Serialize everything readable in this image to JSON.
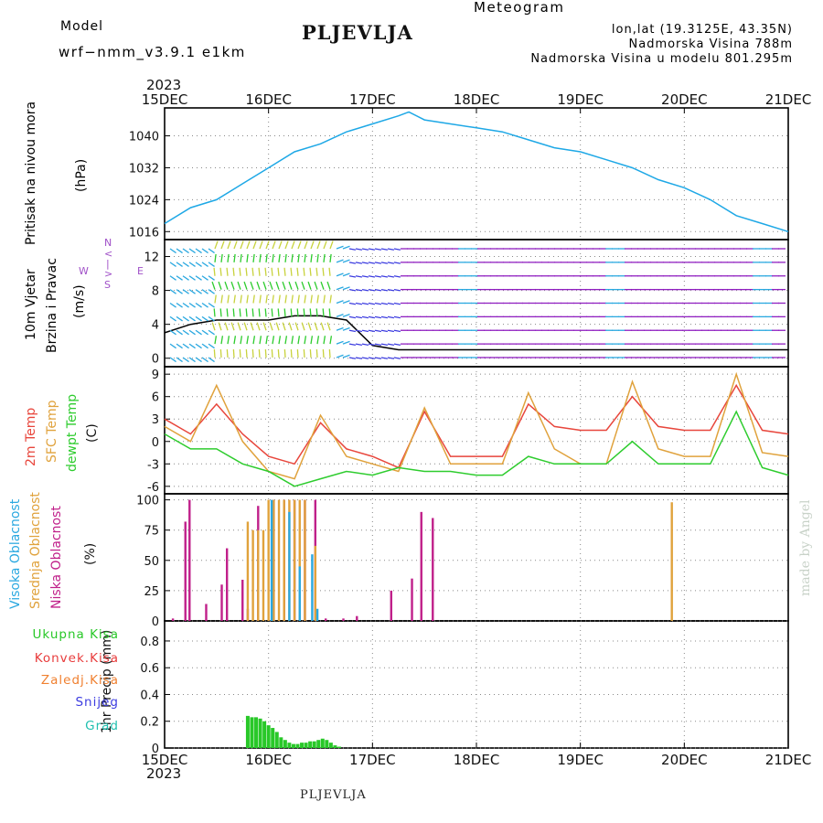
{
  "header": {
    "model_label": "Model",
    "model_value": "wrf−nmm_v3.9.1  e1km",
    "title": "PLJEVLJA",
    "meteogram_label": "Meteogram",
    "lonlat": "lon,lat (19.3125E, 43.35N)",
    "altitude": "Nadmorska Visina 788m",
    "model_altitude": "Nadmorska Visina u modelu 801.295m",
    "year_top": "2023",
    "year_bottom": "2023",
    "footer": "PLJEVLJA",
    "credit": "made by Angel"
  },
  "colors": {
    "pressure": "#1ea8e6",
    "temp2m": "#e8463c",
    "sfc": "#e0a23c",
    "dewpt": "#2ecc2e",
    "high_cloud": "#2aa8e0",
    "mid_cloud": "#e0a23c",
    "low_cloud": "#c0208a",
    "label_purple": "#a050c8",
    "label_orange": "#e8b050",
    "precip_total": "#28c828",
    "precip_conv": "#e83c3c",
    "precip_frz": "#f08030",
    "precip_snow": "#3c3ce0",
    "precip_hail": "#20c0b0"
  },
  "panel_labels": {
    "pressure": [
      "Pritisak na nivou mora",
      "(hPa)"
    ],
    "wind": [
      "10m Vjetar",
      "Brzina i Pravac",
      "(m/s)"
    ],
    "compass": [
      "N",
      "<",
      "|",
      ">",
      "S",
      "W",
      "E"
    ],
    "temp": [
      "2m Temp",
      "SFC Temp",
      "dewpt Temp",
      "(C)"
    ],
    "cloud": [
      "Visoka Oblacnost",
      "Srednja Oblacnost",
      "Niska Oblacnost",
      "(%)"
    ],
    "precip_unit": "1hr Precip (mm)",
    "precip_legend": [
      "Ukupna Kisa",
      "Konvek.Kisa",
      "Zaledj.Kisa",
      "Snijeg",
      "Grad"
    ]
  },
  "chart_data": [
    {
      "type": "line",
      "panel": "pressure",
      "ylabel": "Pritisak na nivou mora (hPa)",
      "x": [
        "15DEC",
        "16DEC",
        "17DEC",
        "18DEC",
        "19DEC",
        "20DEC",
        "21DEC"
      ],
      "yticks": [
        "1016",
        "1024",
        "1032",
        "1040"
      ],
      "ylim": [
        1014,
        1047
      ],
      "series": [
        {
          "color_key": "pressure",
          "points": [
            [
              0,
              1018
            ],
            [
              0.25,
              1022
            ],
            [
              0.5,
              1024
            ],
            [
              0.75,
              1028
            ],
            [
              1.0,
              1032
            ],
            [
              1.25,
              1036
            ],
            [
              1.5,
              1038
            ],
            [
              1.75,
              1041
            ],
            [
              2.0,
              1043
            ],
            [
              2.25,
              1045
            ],
            [
              2.35,
              1046
            ],
            [
              2.5,
              1044
            ],
            [
              2.75,
              1043
            ],
            [
              3.0,
              1042
            ],
            [
              3.25,
              1041
            ],
            [
              3.5,
              1039
            ],
            [
              3.75,
              1037
            ],
            [
              4.0,
              1036
            ],
            [
              4.25,
              1034
            ],
            [
              4.5,
              1032
            ],
            [
              4.75,
              1029
            ],
            [
              5.0,
              1027
            ],
            [
              5.25,
              1024
            ],
            [
              5.5,
              1020
            ],
            [
              5.75,
              1018
            ],
            [
              6.0,
              1016
            ]
          ]
        }
      ]
    },
    {
      "type": "line",
      "panel": "wind",
      "ylabel": "10m Vjetar Brzina i Pravac (m/s)",
      "yticks": [
        "0",
        "4",
        "8",
        "12"
      ],
      "ylim": [
        -1,
        14
      ],
      "series": [
        {
          "name": "wind speed",
          "points": [
            [
              0,
              3
            ],
            [
              0.25,
              4
            ],
            [
              0.5,
              4.5
            ],
            [
              0.75,
              4.5
            ],
            [
              1.0,
              4.5
            ],
            [
              1.25,
              5
            ],
            [
              1.5,
              5
            ],
            [
              1.75,
              4.5
            ],
            [
              2.0,
              1.5
            ],
            [
              2.25,
              1
            ],
            [
              2.5,
              1
            ],
            [
              2.75,
              1
            ],
            [
              3.0,
              1
            ],
            [
              3.5,
              1
            ],
            [
              4.0,
              1
            ],
            [
              4.5,
              1
            ],
            [
              5.0,
              1
            ],
            [
              5.5,
              1
            ],
            [
              6.0,
              1
            ]
          ]
        }
      ]
    },
    {
      "type": "line",
      "panel": "temperature",
      "ylabel": "(C)",
      "yticks": [
        "-6",
        "-3",
        "0",
        "3",
        "6",
        "9"
      ],
      "ylim": [
        -7,
        10
      ],
      "series": [
        {
          "name": "2m Temp",
          "color_key": "temp2m",
          "points": [
            [
              0,
              3
            ],
            [
              0.25,
              1
            ],
            [
              0.5,
              5
            ],
            [
              0.75,
              1
            ],
            [
              1.0,
              -2
            ],
            [
              1.25,
              -3
            ],
            [
              1.5,
              2.5
            ],
            [
              1.75,
              -1
            ],
            [
              2.0,
              -2
            ],
            [
              2.25,
              -3.5
            ],
            [
              2.5,
              4
            ],
            [
              2.75,
              -2
            ],
            [
              3.0,
              -2
            ],
            [
              3.25,
              -2
            ],
            [
              3.5,
              5
            ],
            [
              3.75,
              2
            ],
            [
              4.0,
              1.5
            ],
            [
              4.25,
              1.5
            ],
            [
              4.5,
              6
            ],
            [
              4.75,
              2
            ],
            [
              5.0,
              1.5
            ],
            [
              5.25,
              1.5
            ],
            [
              5.5,
              7.5
            ],
            [
              5.75,
              1.5
            ],
            [
              6.0,
              1
            ]
          ]
        },
        {
          "name": "SFC Temp",
          "color_key": "sfc",
          "points": [
            [
              0,
              2
            ],
            [
              0.25,
              0
            ],
            [
              0.5,
              7.5
            ],
            [
              0.75,
              0
            ],
            [
              1.0,
              -4
            ],
            [
              1.25,
              -5
            ],
            [
              1.5,
              3.5
            ],
            [
              1.75,
              -2
            ],
            [
              2.0,
              -3
            ],
            [
              2.25,
              -4
            ],
            [
              2.5,
              4.5
            ],
            [
              2.75,
              -3
            ],
            [
              3.0,
              -3
            ],
            [
              3.25,
              -3
            ],
            [
              3.5,
              6.5
            ],
            [
              3.75,
              -1
            ],
            [
              4.0,
              -3
            ],
            [
              4.25,
              -3
            ],
            [
              4.5,
              8
            ],
            [
              4.75,
              -1
            ],
            [
              5.0,
              -2
            ],
            [
              5.25,
              -2
            ],
            [
              5.5,
              9
            ],
            [
              5.75,
              -1.5
            ],
            [
              6.0,
              -2
            ]
          ]
        },
        {
          "name": "dewpt Temp",
          "color_key": "dewpt",
          "points": [
            [
              0,
              1
            ],
            [
              0.25,
              -1
            ],
            [
              0.5,
              -1
            ],
            [
              0.75,
              -3
            ],
            [
              1.0,
              -4
            ],
            [
              1.25,
              -6
            ],
            [
              1.5,
              -5
            ],
            [
              1.75,
              -4
            ],
            [
              2.0,
              -4.5
            ],
            [
              2.25,
              -3.5
            ],
            [
              2.5,
              -4
            ],
            [
              2.75,
              -4
            ],
            [
              3.0,
              -4.5
            ],
            [
              3.25,
              -4.5
            ],
            [
              3.5,
              -2
            ],
            [
              3.75,
              -3
            ],
            [
              4.0,
              -3
            ],
            [
              4.25,
              -3
            ],
            [
              4.5,
              0
            ],
            [
              4.75,
              -3
            ],
            [
              5.0,
              -3
            ],
            [
              5.25,
              -3
            ],
            [
              5.5,
              4
            ],
            [
              5.75,
              -3.5
            ],
            [
              6.0,
              -4.5
            ]
          ]
        }
      ]
    },
    {
      "type": "bar",
      "panel": "cloud",
      "ylabel": "(%)",
      "yticks": [
        "0",
        "25",
        "50",
        "75",
        "100"
      ],
      "ylim": [
        0,
        105
      ],
      "series": [
        {
          "name": "Niska Oblacnost",
          "color_key": "low_cloud",
          "bars": [
            [
              0.08,
              2
            ],
            [
              0.2,
              82
            ],
            [
              0.24,
              100
            ],
            [
              0.4,
              14
            ],
            [
              0.55,
              30
            ],
            [
              0.6,
              60
            ],
            [
              0.75,
              34
            ],
            [
              0.8,
              10
            ],
            [
              0.9,
              95
            ],
            [
              1.05,
              100
            ],
            [
              1.15,
              100
            ],
            [
              1.25,
              100
            ],
            [
              1.35,
              100
            ],
            [
              1.45,
              100
            ],
            [
              1.55,
              2
            ],
            [
              1.72,
              2
            ],
            [
              1.85,
              4
            ],
            [
              2.18,
              25
            ],
            [
              2.38,
              35
            ],
            [
              2.47,
              90
            ],
            [
              2.58,
              85
            ]
          ]
        },
        {
          "name": "Srednja Oblacnost",
          "color_key": "mid_cloud",
          "bars": [
            [
              0.8,
              82
            ],
            [
              0.85,
              75
            ],
            [
              0.9,
              75
            ],
            [
              0.95,
              75
            ],
            [
              1.0,
              100
            ],
            [
              1.05,
              100
            ],
            [
              1.1,
              100
            ],
            [
              1.15,
              100
            ],
            [
              1.2,
              100
            ],
            [
              1.25,
              100
            ],
            [
              1.3,
              100
            ],
            [
              1.35,
              100
            ],
            [
              1.45,
              62
            ],
            [
              4.88,
              98
            ]
          ]
        },
        {
          "name": "Visoka Oblacnost",
          "color_key": "high_cloud",
          "bars": [
            [
              1.03,
              100
            ],
            [
              1.2,
              90
            ],
            [
              1.3,
              45
            ],
            [
              1.42,
              55
            ],
            [
              1.47,
              10
            ]
          ]
        }
      ]
    },
    {
      "type": "bar",
      "panel": "precip",
      "ylabel": "1hr Precip (mm)",
      "yticks": [
        "0",
        "0.2",
        "0.4",
        "0.6",
        "0.8"
      ],
      "ylim": [
        0,
        0.95
      ],
      "series": [
        {
          "name": "Ukupna Kisa",
          "color_key": "precip_total",
          "bars": [
            [
              0.8,
              0.24
            ],
            [
              0.84,
              0.23
            ],
            [
              0.88,
              0.23
            ],
            [
              0.92,
              0.22
            ],
            [
              0.96,
              0.2
            ],
            [
              1.0,
              0.17
            ],
            [
              1.04,
              0.15
            ],
            [
              1.08,
              0.12
            ],
            [
              1.12,
              0.08
            ],
            [
              1.16,
              0.06
            ],
            [
              1.2,
              0.04
            ],
            [
              1.24,
              0.03
            ],
            [
              1.28,
              0.03
            ],
            [
              1.32,
              0.04
            ],
            [
              1.36,
              0.04
            ],
            [
              1.4,
              0.05
            ],
            [
              1.44,
              0.05
            ],
            [
              1.48,
              0.06
            ],
            [
              1.52,
              0.07
            ],
            [
              1.56,
              0.06
            ],
            [
              1.6,
              0.04
            ],
            [
              1.64,
              0.02
            ],
            [
              1.68,
              0.01
            ]
          ]
        }
      ]
    }
  ]
}
